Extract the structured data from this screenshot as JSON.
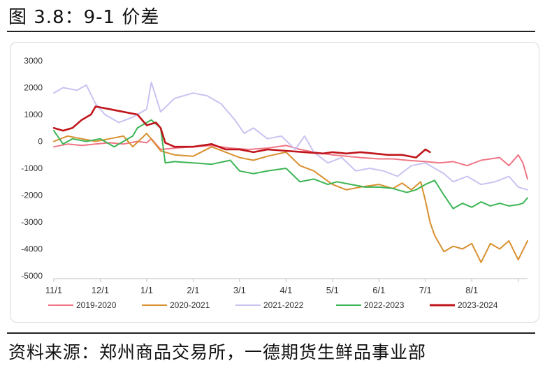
{
  "figure": {
    "title": "图 3.8：9-1 价差",
    "source": "资料来源：郑州商品交易所，一德期货生鲜品事业部"
  },
  "chart_data": {
    "type": "line",
    "title": "",
    "xlabel": "",
    "ylabel": "",
    "ylim": [
      -5000,
      3000
    ],
    "yticks": [
      3000,
      2000,
      1000,
      0,
      -1000,
      -2000,
      -3000,
      -4000,
      -5000
    ],
    "ytick_labels": [
      "3000",
      "2000",
      "1000",
      "0",
      "-1000",
      "-2000",
      "-3000",
      "-4000",
      "-5000"
    ],
    "xticks": [
      0,
      1,
      2,
      3,
      4,
      5,
      6,
      7,
      8,
      9,
      10
    ],
    "xtick_labels": [
      "11/1",
      "12/1",
      "1/1",
      "2/1",
      "3/1",
      "4/1",
      "5/1",
      "6/1",
      "7/1",
      "8/1",
      ""
    ],
    "grid": false,
    "legend": "bottom",
    "series": [
      {
        "name": "2019-2020",
        "color": "#f07585",
        "x": [
          0,
          0.3,
          0.6,
          0.9,
          1.2,
          1.5,
          1.8,
          2.0,
          2.1,
          2.3,
          2.6,
          3.0,
          3.4,
          3.8,
          4.2,
          4.6,
          5.0,
          5.3,
          5.6,
          6.0,
          6.3,
          6.6,
          7.0,
          7.3,
          7.6,
          8.0,
          8.3,
          8.6,
          8.9,
          9.2,
          9.4,
          9.6,
          9.8,
          10.0,
          10.1,
          10.2
        ],
        "y": [
          -200,
          -100,
          -150,
          -100,
          -50,
          -100,
          0,
          -50,
          100,
          -300,
          -250,
          -200,
          -150,
          -250,
          -300,
          -250,
          -150,
          -300,
          -400,
          -500,
          -550,
          -600,
          -650,
          -650,
          -700,
          -750,
          -800,
          -750,
          -900,
          -700,
          -650,
          -600,
          -900,
          -500,
          -800,
          -1400
        ]
      },
      {
        "name": "2020-2021",
        "color": "#d9902f",
        "x": [
          0,
          0.3,
          0.6,
          0.9,
          1.2,
          1.5,
          1.7,
          2.0,
          2.3,
          2.6,
          3.0,
          3.4,
          3.7,
          4.0,
          4.3,
          4.6,
          5.0,
          5.3,
          5.6,
          6.0,
          6.3,
          6.6,
          7.0,
          7.3,
          7.5,
          7.7,
          7.9,
          8.0,
          8.1,
          8.2,
          8.4,
          8.6,
          8.8,
          9.0,
          9.2,
          9.4,
          9.6,
          9.8,
          10.0,
          10.2
        ],
        "y": [
          0,
          200,
          100,
          0,
          100,
          200,
          -200,
          300,
          -350,
          -500,
          -550,
          -200,
          -400,
          -600,
          -700,
          -550,
          -400,
          -900,
          -1100,
          -1600,
          -1800,
          -1700,
          -1600,
          -1750,
          -1550,
          -1800,
          -1500,
          -2200,
          -3000,
          -3500,
          -4100,
          -3900,
          -4000,
          -3800,
          -4500,
          -3800,
          -4000,
          -3700,
          -4400,
          -3700
        ]
      },
      {
        "name": "2021-2022",
        "color": "#c8c3f2",
        "x": [
          0,
          0.2,
          0.5,
          0.7,
          0.9,
          1.1,
          1.4,
          1.7,
          2.0,
          2.1,
          2.3,
          2.6,
          3.0,
          3.3,
          3.6,
          3.9,
          4.1,
          4.3,
          4.6,
          4.9,
          5.2,
          5.4,
          5.6,
          5.9,
          6.2,
          6.5,
          6.8,
          7.1,
          7.4,
          7.7,
          8.0,
          8.2,
          8.4,
          8.6,
          8.9,
          9.2,
          9.5,
          9.8,
          10.0,
          10.2
        ],
        "y": [
          1800,
          2000,
          1900,
          2100,
          1400,
          1000,
          700,
          900,
          1200,
          2200,
          1100,
          1600,
          1800,
          1700,
          1400,
          800,
          300,
          500,
          100,
          200,
          -300,
          200,
          -400,
          -800,
          -600,
          -1100,
          -1000,
          -1100,
          -1300,
          -900,
          -800,
          -1000,
          -1200,
          -1500,
          -1300,
          -1600,
          -1500,
          -1300,
          -1700,
          -1800
        ]
      },
      {
        "name": "2022-2023",
        "color": "#3cb554",
        "x": [
          0,
          0.2,
          0.4,
          0.7,
          1.0,
          1.3,
          1.5,
          1.7,
          1.8,
          2.0,
          2.1,
          2.3,
          2.4,
          2.6,
          3.0,
          3.4,
          3.8,
          4.0,
          4.3,
          4.6,
          5.0,
          5.3,
          5.6,
          5.9,
          6.1,
          6.4,
          6.7,
          7.0,
          7.3,
          7.6,
          7.8,
          8.0,
          8.2,
          8.4,
          8.6,
          8.8,
          9.0,
          9.2,
          9.4,
          9.6,
          9.8,
          10.0,
          10.1,
          10.2
        ],
        "y": [
          400,
          -100,
          100,
          0,
          100,
          -200,
          0,
          200,
          500,
          700,
          800,
          500,
          -800,
          -750,
          -800,
          -850,
          -700,
          -1100,
          -1200,
          -1100,
          -1000,
          -1500,
          -1400,
          -1600,
          -1500,
          -1600,
          -1700,
          -1700,
          -1750,
          -1900,
          -1800,
          -1600,
          -1450,
          -2000,
          -2500,
          -2300,
          -2450,
          -2250,
          -2400,
          -2300,
          -2400,
          -2350,
          -2300,
          -2100
        ]
      },
      {
        "name": "2023-2024",
        "color": "#c0151b",
        "x": [
          0,
          0.2,
          0.4,
          0.6,
          0.8,
          0.9,
          1.2,
          1.5,
          1.8,
          2.0,
          2.2,
          2.3,
          2.4,
          2.6,
          3.0,
          3.4,
          3.7,
          4.0,
          4.3,
          4.6,
          5.0,
          5.4,
          5.8,
          6.0,
          6.3,
          6.6,
          6.9,
          7.2,
          7.5,
          7.8,
          8.0,
          8.1
        ],
        "y": [
          500,
          400,
          500,
          800,
          1000,
          1300,
          1200,
          1100,
          1000,
          600,
          700,
          500,
          -50,
          -200,
          -200,
          -100,
          -300,
          -300,
          -400,
          -300,
          -350,
          -400,
          -450,
          -400,
          -450,
          -400,
          -450,
          -500,
          -500,
          -600,
          -300,
          -400
        ]
      }
    ]
  }
}
